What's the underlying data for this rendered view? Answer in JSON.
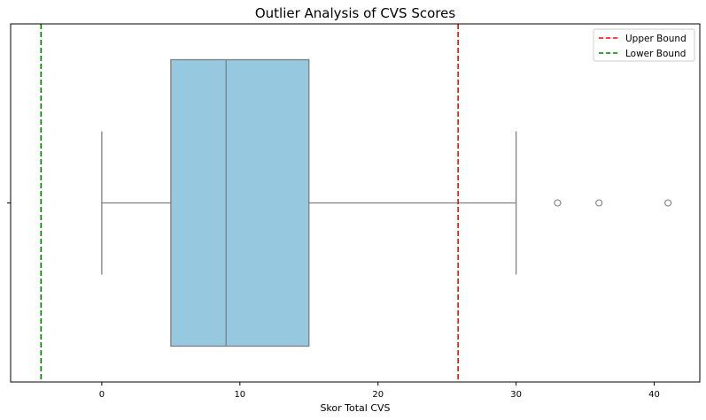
{
  "chart_data": {
    "type": "boxplot",
    "title": "Outlier Analysis of CVS Scores",
    "xlabel": "Skor Total CVS",
    "ylabel": "",
    "xlim": [
      -6.6,
      43.3
    ],
    "xticks": [
      0,
      10,
      20,
      30,
      40
    ],
    "grid": false,
    "box": {
      "whisker_low": 0,
      "q1": 5,
      "median": 9,
      "q3": 15,
      "whisker_high": 30,
      "outliers": [
        33,
        36,
        41
      ],
      "fill_color": "#96c8df",
      "line_color": "#7f7f7f"
    },
    "reference_lines": [
      {
        "name": "Upper Bound",
        "value": 25.8,
        "color": "#ff0000",
        "style": "dashed"
      },
      {
        "name": "Lower Bound",
        "value": -4.4,
        "color": "#008000",
        "style": "dashed"
      }
    ],
    "legend": {
      "placement": "top-right",
      "entries": [
        "Upper Bound",
        "Lower Bound"
      ]
    }
  }
}
